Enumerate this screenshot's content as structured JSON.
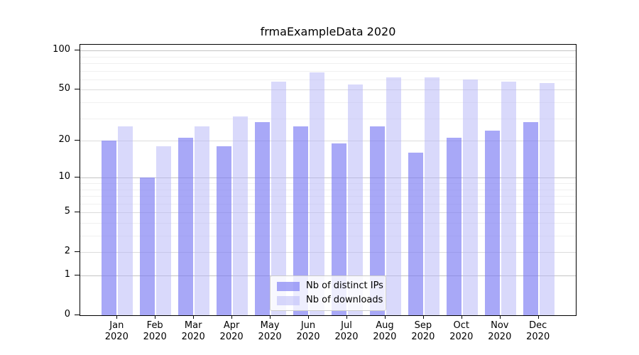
{
  "title": "frmaExampleData 2020",
  "chart_data": {
    "type": "bar",
    "title": "frmaExampleData 2020",
    "months": [
      "Jan",
      "Feb",
      "Mar",
      "Apr",
      "May",
      "Jun",
      "Jul",
      "Aug",
      "Sep",
      "Oct",
      "Nov",
      "Dec"
    ],
    "year": "2020",
    "series": [
      {
        "name": "Nb of distinct IPs",
        "color": "rgba(121,121,243,0.65)",
        "color_hex": "#a8a8f7",
        "values": [
          20,
          10,
          21,
          18,
          28,
          26,
          19,
          26,
          16,
          21,
          24,
          28
        ]
      },
      {
        "name": "Nb of downloads",
        "color": "rgba(179,179,247,0.5)",
        "color_hex": "#d9d9fb",
        "values": [
          26,
          18,
          26,
          31,
          58,
          68,
          55,
          62,
          62,
          60,
          58,
          56
        ]
      }
    ],
    "xlabel": "",
    "ylabel": "",
    "yscale": "log1p",
    "ylim": [
      0,
      110.7
    ],
    "yticks": [
      0,
      1,
      2,
      5,
      10,
      20,
      50,
      100
    ],
    "yticks_decade": [
      1,
      10,
      100
    ],
    "yticks_minor": [
      3,
      4,
      6,
      7,
      8,
      9,
      30,
      40,
      60,
      70,
      80,
      90
    ],
    "grid": true,
    "legend_position": "lower center"
  }
}
